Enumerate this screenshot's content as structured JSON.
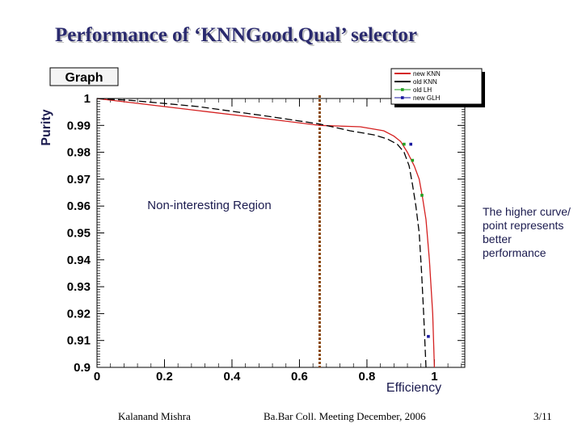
{
  "slide": {
    "title": "Performance of ‘KNNGood.Qual’ selector",
    "footer_author": "Kalanand Mishra",
    "footer_meeting": "Ba.Bar Coll. Meeting December, 2006",
    "footer_page": "3/11",
    "note": "The higher curve/ point represents better performance"
  },
  "chart_data": {
    "type": "line",
    "graph_label": "Graph",
    "xlabel": "Efficiency",
    "ylabel": "Purity",
    "xlim": [
      0,
      1.09
    ],
    "ylim": [
      0.9,
      1.0
    ],
    "x_ticks": [
      0,
      0.2,
      0.4,
      0.6,
      0.8,
      1
    ],
    "x_tick_labels": [
      "0",
      "0.2",
      "0.4",
      "0.6",
      "0.8",
      "1"
    ],
    "y_ticks": [
      0.9,
      0.91,
      0.92,
      0.93,
      0.94,
      0.95,
      0.96,
      0.97,
      0.98,
      0.99,
      1.0
    ],
    "y_tick_labels": [
      "0.9",
      "0.91",
      "0.92",
      "0.93",
      "0.94",
      "0.95",
      "0.96",
      "0.97",
      "0.98",
      "0.99",
      "1"
    ],
    "region_boundary_x": 0.66,
    "region_label": "Non-interesting Region",
    "series": [
      {
        "name": "new KNN",
        "color": "#d42020",
        "style": "solid",
        "x": [
          0.0,
          0.1,
          0.3,
          0.5,
          0.66,
          0.78,
          0.85,
          0.88,
          0.9,
          0.92,
          0.94,
          0.955,
          0.965,
          0.975,
          0.985,
          0.995,
          1.0
        ],
        "y": [
          1.0,
          0.9985,
          0.9955,
          0.9925,
          0.99,
          0.9895,
          0.988,
          0.986,
          0.984,
          0.98,
          0.975,
          0.97,
          0.963,
          0.955,
          0.94,
          0.92,
          0.9
        ]
      },
      {
        "name": "old KNN",
        "color": "#000000",
        "style": "dashed",
        "x": [
          0.0,
          0.1,
          0.3,
          0.5,
          0.66,
          0.75,
          0.82,
          0.86,
          0.89,
          0.91,
          0.925,
          0.935,
          0.945,
          0.955,
          0.962,
          0.968,
          0.975
        ],
        "y": [
          1.0,
          0.9993,
          0.997,
          0.9935,
          0.9905,
          0.988,
          0.9865,
          0.985,
          0.983,
          0.98,
          0.975,
          0.968,
          0.96,
          0.95,
          0.935,
          0.92,
          0.9
        ]
      },
      {
        "name": "old LH",
        "color": "#22a022",
        "style": "points",
        "x": [
          0.91,
          0.935,
          0.963
        ],
        "y": [
          0.983,
          0.977,
          0.964
        ]
      },
      {
        "name": "new GLH",
        "color": "#1a1aa0",
        "style": "points",
        "x": [
          0.93,
          0.982
        ],
        "y": [
          0.983,
          0.9115
        ]
      }
    ]
  }
}
